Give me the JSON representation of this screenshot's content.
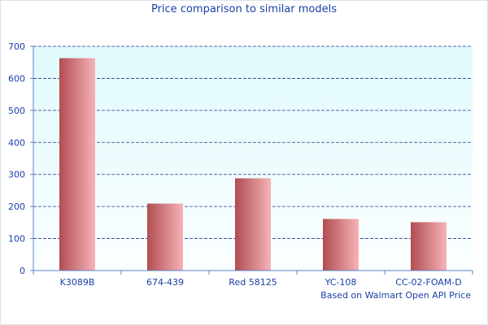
{
  "chart_data": {
    "type": "bar",
    "title": "Price comparison to similar models",
    "categories": [
      "K3089B",
      "674-439",
      "Red 58125",
      "YC-108",
      "CC-02-FOAM-D"
    ],
    "values": [
      663,
      209,
      288,
      161,
      151
    ],
    "ylim": [
      0,
      700
    ],
    "yticks": [
      0,
      100,
      200,
      300,
      400,
      500,
      600,
      700
    ],
    "xlabel": "",
    "ylabel": "",
    "footnote": "Based on Walmart Open API Price",
    "grid": true
  },
  "colors": {
    "title": "#1a3fa6",
    "grid": "#26368f",
    "bar_dark": "#b14d52",
    "bar_light": "#f7b3b6",
    "plot_top": "#e0fafc",
    "plot_bottom": "#fbfeff"
  }
}
